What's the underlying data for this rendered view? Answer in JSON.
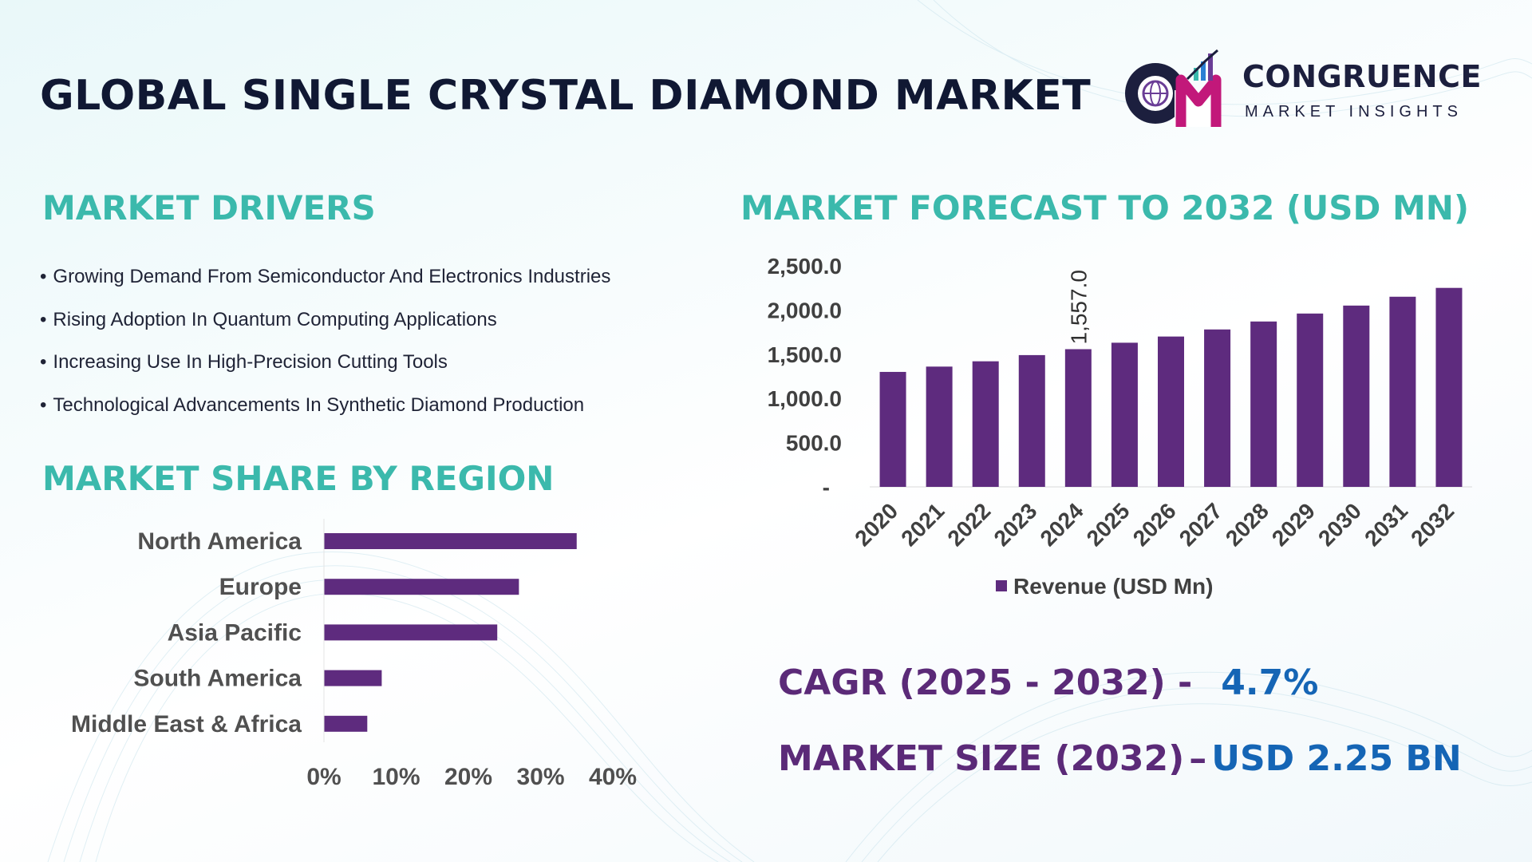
{
  "header": {
    "title": "GLOBAL SINGLE CRYSTAL DIAMOND MARKET",
    "logo_name": "CONGRUENCE",
    "logo_tagline": "MARKET INSIGHTS"
  },
  "drivers": {
    "title": "MARKET DRIVERS",
    "bullet": "•",
    "items": [
      "Growing Demand From Semiconductor And Electronics Industries",
      "Rising Adoption In Quantum Computing Applications",
      "Increasing Use In High-Precision Cutting Tools",
      "Technological Advancements In Synthetic Diamond Production"
    ]
  },
  "share": {
    "title": "MARKET SHARE BY REGION"
  },
  "forecast": {
    "title": "MARKET FORECAST TO 2032 (USD MN)"
  },
  "summary": {
    "cagr_label": "CAGR (2025 - 2032) -",
    "cagr_value": "4.7%",
    "size_label": "MARKET SIZE (2032)",
    "size_separator": "–",
    "size_value": "USD 2.25 BN"
  },
  "colors": {
    "bar": "#5e2b7e",
    "section_title": "#3bb9ac",
    "summary_label": "#5b2a78",
    "summary_value": "#1565b5"
  },
  "chart_data": [
    {
      "type": "bar",
      "orientation": "vertical",
      "categories": [
        "2020",
        "2021",
        "2022",
        "2023",
        "2024",
        "2025",
        "2026",
        "2027",
        "2028",
        "2029",
        "2030",
        "2031",
        "2032"
      ],
      "series": [
        {
          "name": "Revenue (USD Mn)",
          "values": [
            1300,
            1360,
            1420,
            1490,
            1557,
            1630,
            1700,
            1780,
            1870,
            1960,
            2050,
            2150,
            2250
          ]
        }
      ],
      "y_ticks": [
        "-",
        "500.0",
        "1,000.0",
        "1,500.0",
        "2,000.0",
        "2,500.0"
      ],
      "ylim": [
        0,
        2500
      ],
      "data_labels": [
        {
          "category": "2024",
          "text": "1,557.0"
        }
      ],
      "legend": "bottom",
      "grid": false
    },
    {
      "type": "bar",
      "orientation": "horizontal",
      "categories": [
        "North America",
        "Europe",
        "Asia Pacific",
        "South America",
        "Middle East & Africa"
      ],
      "values": [
        35,
        27,
        24,
        8,
        6
      ],
      "x_ticks": [
        "0%",
        "10%",
        "20%",
        "30%",
        "40%"
      ],
      "xlim": [
        0,
        40
      ],
      "grid": false
    }
  ]
}
